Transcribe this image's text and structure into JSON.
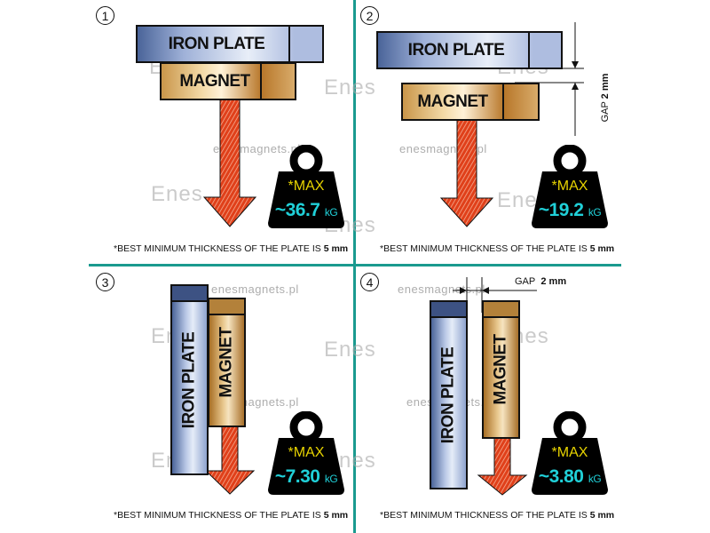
{
  "panels": [
    {
      "number": "1",
      "iron_label": "IRON PLATE",
      "magnet_label": "MAGNET",
      "max_label": "*MAX",
      "force": "~36.7",
      "unit": "kG"
    },
    {
      "number": "2",
      "iron_label": "IRON PLATE",
      "magnet_label": "MAGNET",
      "max_label": "*MAX",
      "force": "~19.2",
      "unit": "kG",
      "gap_label": "GAP",
      "gap_value": "2 mm"
    },
    {
      "number": "3",
      "iron_label": "IRON  PLATE",
      "magnet_label": "MAGNET",
      "max_label": "*MAX",
      "force": "~7.30",
      "unit": "kG"
    },
    {
      "number": "4",
      "iron_label": "IRON PLATE",
      "magnet_label": "MAGNET",
      "max_label": "*MAX",
      "force": "~3.80",
      "unit": "kG",
      "gap_label": "GAP",
      "gap_value": "2 mm"
    }
  ],
  "footnote": {
    "text": "*BEST MINIMUM THICKNESS OF THE PLATE IS ",
    "value": "5 mm"
  },
  "watermark": {
    "site": "enesmagnets.pl",
    "logo": "Enes"
  },
  "colors": {
    "divider": "#1a9a8f",
    "arrow": "#e0401a",
    "max": "#e8d400",
    "force": "#20d0d8"
  }
}
